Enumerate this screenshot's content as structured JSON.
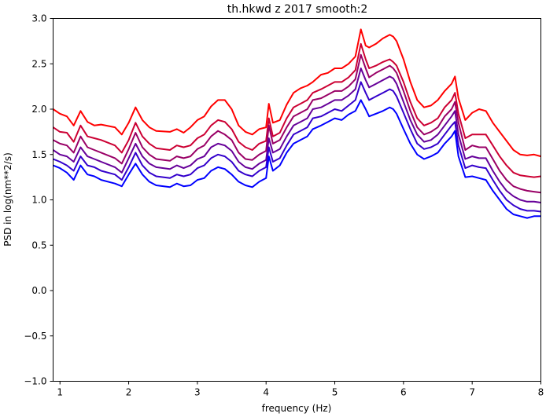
{
  "chart_data": {
    "type": "line",
    "title": "th.hkwd z 2017 smooth:2",
    "xlabel": "frequency (Hz)",
    "ylabel": "PSD in log(nm**2/s)",
    "xlim": [
      0.9,
      8.0
    ],
    "ylim": [
      -1.0,
      3.0
    ],
    "xticks": [
      "1",
      "2",
      "3",
      "4",
      "5",
      "6",
      "7",
      "8"
    ],
    "yticks": [
      "−1.0",
      "−0.5",
      "0.0",
      "0.5",
      "1.0",
      "1.5",
      "2.0",
      "2.5",
      "3.0"
    ],
    "grid": false,
    "legend": "none",
    "x": [
      0.9,
      1.0,
      1.1,
      1.2,
      1.3,
      1.4,
      1.5,
      1.6,
      1.8,
      1.9,
      2.0,
      2.1,
      2.2,
      2.3,
      2.4,
      2.6,
      2.7,
      2.8,
      2.9,
      3.0,
      3.1,
      3.2,
      3.3,
      3.4,
      3.5,
      3.6,
      3.7,
      3.8,
      3.9,
      4.0,
      4.04,
      4.1,
      4.2,
      4.3,
      4.4,
      4.5,
      4.6,
      4.68,
      4.8,
      4.9,
      5.0,
      5.1,
      5.2,
      5.3,
      5.38,
      5.45,
      5.5,
      5.6,
      5.7,
      5.8,
      5.85,
      5.9,
      6.0,
      6.1,
      6.2,
      6.3,
      6.4,
      6.5,
      6.6,
      6.7,
      6.75,
      6.8,
      6.9,
      7.0,
      7.1,
      7.2,
      7.3,
      7.4,
      7.5,
      7.6,
      7.7,
      7.8,
      7.9,
      8.0
    ],
    "series": [
      {
        "color": "#ff0000",
        "values": [
          2.0,
          1.95,
          1.92,
          1.82,
          1.98,
          1.86,
          1.82,
          1.83,
          1.8,
          1.72,
          1.85,
          2.02,
          1.88,
          1.8,
          1.76,
          1.75,
          1.78,
          1.74,
          1.8,
          1.88,
          1.92,
          2.03,
          2.1,
          2.1,
          2.0,
          1.82,
          1.75,
          1.72,
          1.78,
          1.8,
          2.06,
          1.85,
          1.88,
          2.05,
          2.18,
          2.23,
          2.26,
          2.3,
          2.38,
          2.4,
          2.45,
          2.45,
          2.5,
          2.58,
          2.88,
          2.7,
          2.68,
          2.72,
          2.78,
          2.82,
          2.8,
          2.75,
          2.55,
          2.3,
          2.1,
          2.02,
          2.04,
          2.1,
          2.2,
          2.28,
          2.36,
          2.12,
          1.88,
          1.96,
          2.0,
          1.98,
          1.85,
          1.75,
          1.65,
          1.55,
          1.5,
          1.49,
          1.5,
          1.48
        ]
      },
      {
        "color": "#cc0033",
        "values": [
          1.8,
          1.75,
          1.74,
          1.64,
          1.82,
          1.7,
          1.68,
          1.66,
          1.6,
          1.52,
          1.66,
          1.85,
          1.7,
          1.62,
          1.57,
          1.55,
          1.6,
          1.58,
          1.6,
          1.68,
          1.72,
          1.82,
          1.88,
          1.86,
          1.78,
          1.64,
          1.58,
          1.55,
          1.62,
          1.65,
          1.9,
          1.7,
          1.74,
          1.9,
          2.02,
          2.06,
          2.1,
          2.18,
          2.22,
          2.26,
          2.3,
          2.3,
          2.35,
          2.43,
          2.72,
          2.55,
          2.45,
          2.48,
          2.52,
          2.55,
          2.52,
          2.48,
          2.3,
          2.08,
          1.9,
          1.82,
          1.85,
          1.9,
          2.02,
          2.1,
          2.18,
          1.95,
          1.68,
          1.72,
          1.72,
          1.72,
          1.6,
          1.48,
          1.38,
          1.3,
          1.27,
          1.26,
          1.25,
          1.26
        ]
      },
      {
        "color": "#990066",
        "values": [
          1.66,
          1.62,
          1.6,
          1.52,
          1.7,
          1.58,
          1.55,
          1.52,
          1.46,
          1.4,
          1.56,
          1.74,
          1.58,
          1.5,
          1.45,
          1.43,
          1.48,
          1.46,
          1.48,
          1.56,
          1.6,
          1.7,
          1.76,
          1.72,
          1.66,
          1.52,
          1.45,
          1.44,
          1.5,
          1.54,
          1.82,
          1.62,
          1.66,
          1.8,
          1.92,
          1.96,
          2.0,
          2.1,
          2.12,
          2.16,
          2.2,
          2.2,
          2.25,
          2.33,
          2.6,
          2.45,
          2.35,
          2.4,
          2.44,
          2.48,
          2.45,
          2.4,
          2.2,
          1.98,
          1.8,
          1.72,
          1.75,
          1.8,
          1.92,
          2.0,
          2.08,
          1.85,
          1.55,
          1.6,
          1.58,
          1.58,
          1.45,
          1.32,
          1.22,
          1.15,
          1.12,
          1.1,
          1.09,
          1.08
        ]
      },
      {
        "color": "#660099",
        "values": [
          1.55,
          1.5,
          1.48,
          1.42,
          1.58,
          1.48,
          1.45,
          1.42,
          1.36,
          1.3,
          1.46,
          1.62,
          1.48,
          1.4,
          1.36,
          1.34,
          1.38,
          1.35,
          1.38,
          1.45,
          1.48,
          1.58,
          1.62,
          1.6,
          1.54,
          1.42,
          1.36,
          1.34,
          1.4,
          1.44,
          1.68,
          1.52,
          1.56,
          1.7,
          1.82,
          1.86,
          1.9,
          2.0,
          2.02,
          2.06,
          2.1,
          2.1,
          2.15,
          2.22,
          2.45,
          2.32,
          2.24,
          2.28,
          2.32,
          2.36,
          2.34,
          2.28,
          2.08,
          1.88,
          1.72,
          1.64,
          1.66,
          1.72,
          1.82,
          1.92,
          1.98,
          1.72,
          1.45,
          1.48,
          1.46,
          1.46,
          1.32,
          1.2,
          1.1,
          1.04,
          1.0,
          0.98,
          0.98,
          0.97
        ]
      },
      {
        "color": "#3300cc",
        "values": [
          1.45,
          1.42,
          1.38,
          1.32,
          1.48,
          1.38,
          1.36,
          1.32,
          1.28,
          1.22,
          1.36,
          1.52,
          1.38,
          1.3,
          1.26,
          1.24,
          1.28,
          1.26,
          1.28,
          1.35,
          1.38,
          1.46,
          1.5,
          1.48,
          1.42,
          1.32,
          1.28,
          1.26,
          1.32,
          1.36,
          1.58,
          1.42,
          1.46,
          1.6,
          1.72,
          1.76,
          1.8,
          1.9,
          1.92,
          1.96,
          2.0,
          1.98,
          2.04,
          2.1,
          2.3,
          2.18,
          2.1,
          2.14,
          2.18,
          2.22,
          2.2,
          2.14,
          1.96,
          1.78,
          1.62,
          1.56,
          1.58,
          1.62,
          1.72,
          1.82,
          1.86,
          1.6,
          1.35,
          1.38,
          1.36,
          1.35,
          1.22,
          1.1,
          1.0,
          0.94,
          0.9,
          0.88,
          0.88,
          0.87
        ]
      },
      {
        "color": "#0000ff",
        "values": [
          1.38,
          1.35,
          1.3,
          1.22,
          1.38,
          1.28,
          1.26,
          1.22,
          1.18,
          1.15,
          1.28,
          1.4,
          1.28,
          1.2,
          1.16,
          1.14,
          1.18,
          1.15,
          1.16,
          1.22,
          1.24,
          1.32,
          1.36,
          1.34,
          1.28,
          1.2,
          1.16,
          1.14,
          1.2,
          1.24,
          1.48,
          1.32,
          1.38,
          1.52,
          1.62,
          1.66,
          1.7,
          1.78,
          1.82,
          1.86,
          1.9,
          1.88,
          1.94,
          1.98,
          2.1,
          2.0,
          1.92,
          1.95,
          1.98,
          2.02,
          2.0,
          1.95,
          1.78,
          1.62,
          1.5,
          1.45,
          1.48,
          1.52,
          1.62,
          1.7,
          1.76,
          1.48,
          1.25,
          1.26,
          1.24,
          1.22,
          1.1,
          1.0,
          0.9,
          0.84,
          0.82,
          0.8,
          0.82,
          0.82
        ]
      }
    ]
  }
}
